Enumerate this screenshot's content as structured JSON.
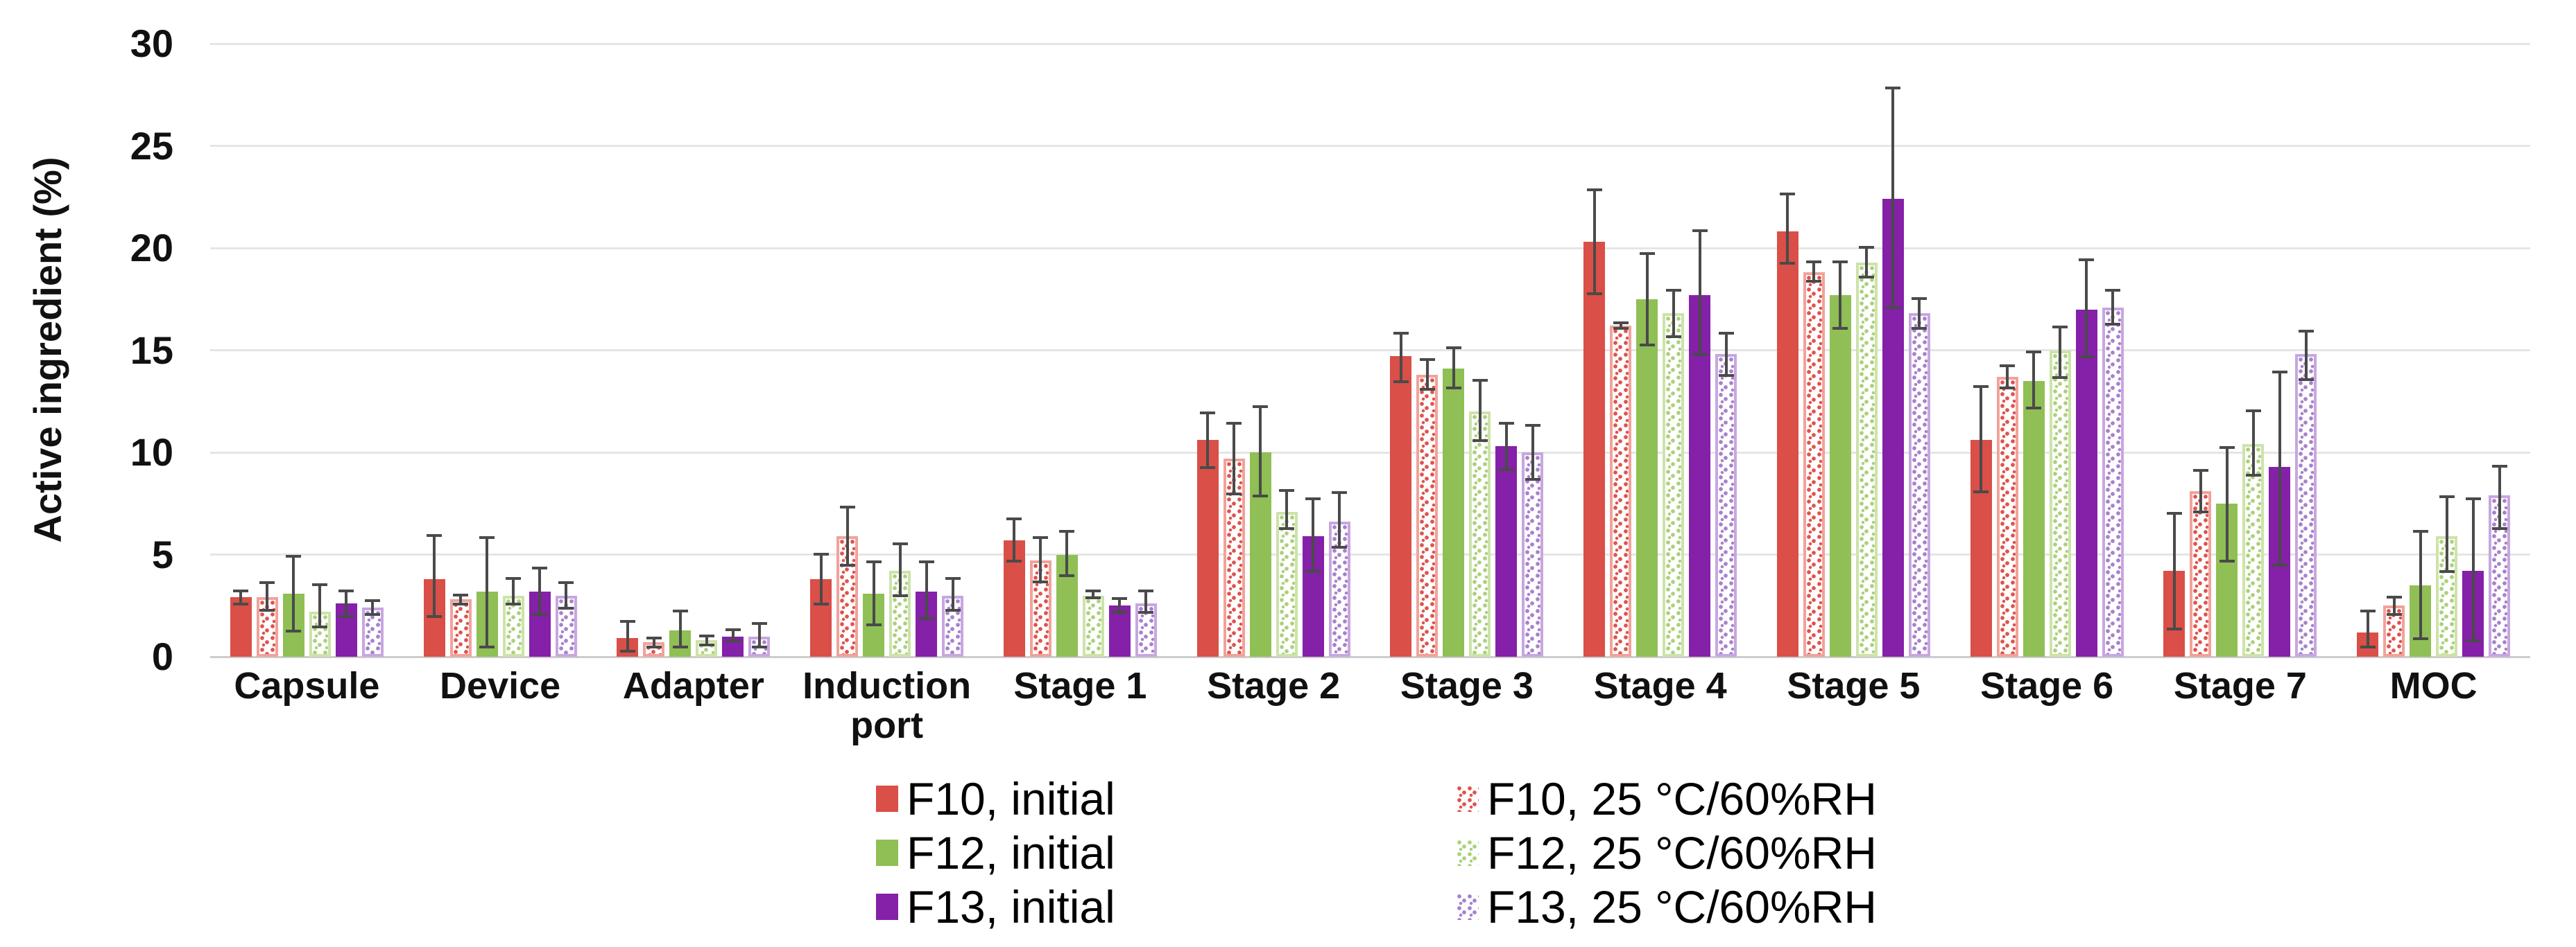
{
  "chart_data": {
    "type": "bar",
    "title": "",
    "xlabel": "",
    "ylabel": "Active ingredient (%)",
    "ylim": [
      0,
      30
    ],
    "yticks": [
      0,
      5,
      10,
      15,
      20,
      25,
      30
    ],
    "grid": true,
    "legend_position": "bottom",
    "categories": [
      "Capsule",
      "Device",
      "Adapter",
      "Induction port",
      "Stage 1",
      "Stage 2",
      "Stage 3",
      "Stage 4",
      "Stage 5",
      "Stage 6",
      "Stage 7",
      "MOC"
    ],
    "series": [
      {
        "name": "F10, initial",
        "variant": "solid",
        "color": "#da4f47",
        "values": [
          2.9,
          3.8,
          0.9,
          3.8,
          5.7,
          10.6,
          14.7,
          20.3,
          20.8,
          10.6,
          4.2,
          1.2
        ],
        "err_up": [
          0.4,
          2.2,
          0.9,
          1.3,
          1.1,
          1.4,
          1.2,
          2.6,
          1.9,
          2.7,
          2.9,
          1.1
        ],
        "err_down": [
          0.4,
          1.9,
          0.7,
          1.3,
          1.1,
          1.4,
          1.3,
          2.6,
          1.6,
          2.6,
          2.9,
          0.8
        ]
      },
      {
        "name": "F10, 25 °C/60%RH",
        "variant": "pattern",
        "color": "#da4f47",
        "border_color": "#f1a29b",
        "dot_color": "#de544c",
        "values": [
          2.9,
          2.8,
          0.7,
          5.9,
          4.7,
          9.7,
          13.8,
          16.2,
          18.8,
          13.7,
          8.1,
          2.5
        ],
        "err_up": [
          0.8,
          0.3,
          0.3,
          1.5,
          1.2,
          1.8,
          0.8,
          0.2,
          0.6,
          0.6,
          1.1,
          0.5
        ],
        "err_down": [
          0.7,
          0.3,
          0.3,
          1.5,
          1.1,
          1.8,
          0.8,
          0.2,
          0.5,
          0.6,
          1.1,
          0.5
        ]
      },
      {
        "name": "F12, initial",
        "variant": "solid",
        "color": "#8fbf55",
        "values": [
          3.1,
          3.2,
          1.3,
          3.1,
          5.0,
          10.0,
          14.1,
          17.5,
          17.7,
          13.5,
          7.5,
          3.5
        ],
        "err_up": [
          1.9,
          2.7,
          1.0,
          1.6,
          1.2,
          2.3,
          1.1,
          2.3,
          1.7,
          1.5,
          2.8,
          2.7
        ],
        "err_down": [
          1.9,
          2.8,
          0.9,
          1.6,
          1.1,
          2.2,
          1.0,
          2.3,
          1.7,
          1.4,
          2.9,
          2.7
        ]
      },
      {
        "name": "F12, 25 °C/60%RH",
        "variant": "pattern",
        "color": "#8fbf55",
        "border_color": "#cde3a9",
        "dot_color": "#abd07c",
        "values": [
          2.2,
          3.0,
          0.8,
          4.2,
          3.0,
          7.1,
          12.0,
          16.8,
          19.3,
          15.0,
          10.4,
          5.9
        ],
        "err_up": [
          1.4,
          0.9,
          0.3,
          1.4,
          0.3,
          1.1,
          1.6,
          1.2,
          0.8,
          1.2,
          1.7,
          2.0
        ],
        "err_down": [
          0.8,
          0.5,
          0.3,
          1.3,
          0.2,
          0.9,
          1.5,
          1.2,
          0.8,
          1.4,
          1.6,
          1.8
        ]
      },
      {
        "name": "F13, initial",
        "variant": "solid",
        "color": "#8520a8",
        "values": [
          2.6,
          3.2,
          1.0,
          3.2,
          2.5,
          5.9,
          10.3,
          17.7,
          22.4,
          17.0,
          9.3,
          4.2
        ],
        "err_up": [
          0.7,
          1.2,
          0.4,
          1.5,
          0.4,
          1.9,
          1.2,
          3.2,
          5.5,
          2.5,
          4.7,
          3.6
        ],
        "err_down": [
          0.7,
          1.2,
          0.3,
          1.4,
          0.4,
          1.8,
          1.2,
          3.0,
          5.4,
          2.4,
          4.9,
          3.5
        ]
      },
      {
        "name": "F13, 25 °C/60%RH",
        "variant": "pattern",
        "color": "#8520a8",
        "border_color": "#c7a7df",
        "dot_color": "#a781cd",
        "values": [
          2.4,
          3.0,
          1.0,
          3.0,
          2.6,
          6.6,
          10.0,
          14.8,
          16.8,
          17.1,
          14.8,
          7.9
        ],
        "err_up": [
          0.4,
          0.7,
          0.7,
          0.9,
          0.7,
          1.5,
          1.4,
          1.1,
          0.8,
          0.9,
          1.2,
          1.5
        ],
        "err_down": [
          0.4,
          0.7,
          0.6,
          0.8,
          0.5,
          1.3,
          1.4,
          1.1,
          0.8,
          0.9,
          1.3,
          1.7
        ]
      }
    ],
    "legend_columns": {
      "left": [
        "F10, initial",
        "F12, initial",
        "F13, initial"
      ],
      "right": [
        "F10, 25 °C/60%RH",
        "F12, 25 °C/60%RH",
        "F13, 25 °C/60%RH"
      ]
    },
    "colors": {
      "grid": "#e5e5e5",
      "axis_line": "#cccccc",
      "error_bar": "#4a4a4a",
      "text": "#111111"
    }
  }
}
